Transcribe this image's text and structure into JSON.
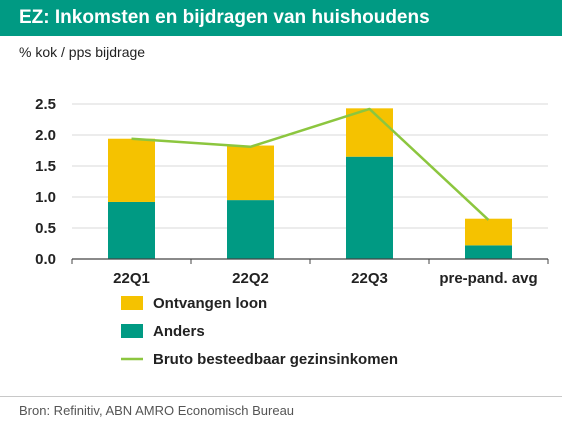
{
  "header": {
    "title": "EZ: Inkomsten en bijdragen van huishoudens"
  },
  "chart_data": {
    "type": "bar",
    "stacked": true,
    "title": "EZ: Inkomsten en bijdragen van huishoudens",
    "ylabel": "% kok / pps bijdrage",
    "categories": [
      "22Q1",
      "22Q2",
      "22Q3",
      "pre-pand. avg"
    ],
    "ylim": [
      0,
      2.5
    ],
    "yticks": [
      "0.0",
      "0.5",
      "1.0",
      "1.5",
      "2.0",
      "2.5"
    ],
    "grid": true,
    "legend_position": "bottom",
    "series": [
      {
        "name": "Anders",
        "kind": "bar",
        "color": "#009a83",
        "values": [
          0.92,
          0.95,
          1.65,
          0.22
        ]
      },
      {
        "name": "Ontvangen loon",
        "kind": "bar",
        "color": "#f5c200",
        "values": [
          1.02,
          0.88,
          0.78,
          0.43
        ]
      },
      {
        "name": "Bruto besteedbaar gezinsinkomen",
        "kind": "line",
        "color": "#8cc63f",
        "values": [
          1.94,
          1.81,
          2.42,
          0.63
        ]
      }
    ],
    "legend_order": [
      "Ontvangen loon",
      "Anders",
      "Bruto besteedbaar gezinsinkomen"
    ]
  },
  "footer": {
    "source": "Bron: Refinitiv, ABN AMRO Economisch Bureau"
  }
}
